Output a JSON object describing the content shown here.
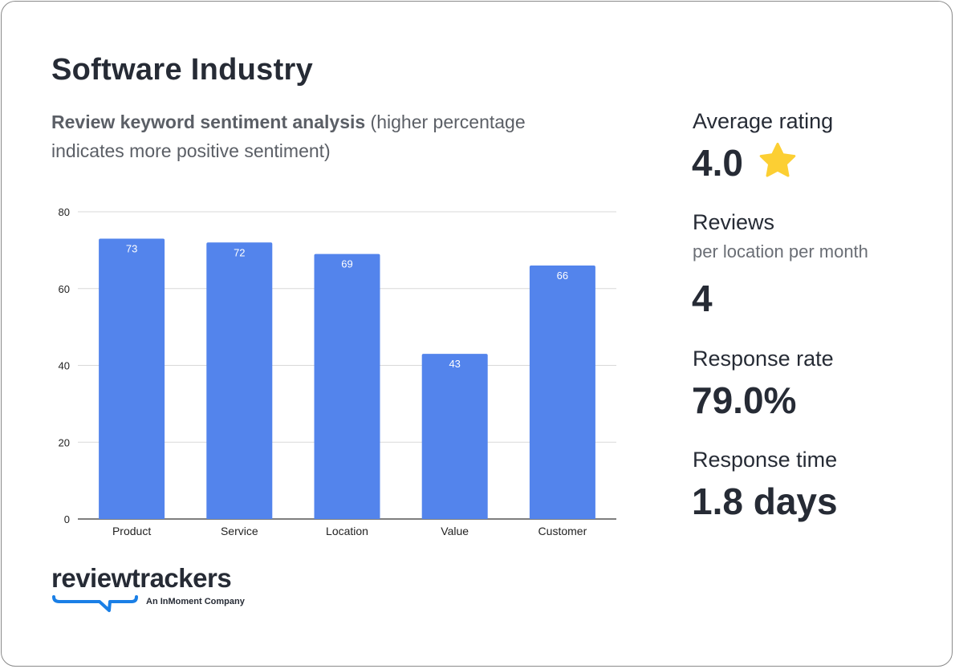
{
  "title": "Software Industry",
  "subtitle": {
    "bold": "Review keyword sentiment analysis",
    "rest": " (higher percentage indicates more positive sentiment)"
  },
  "stats": {
    "avg_rating_label": "Average rating",
    "avg_rating_value": "4.0",
    "star_icon": "star-icon",
    "star_color": "#fccf33",
    "reviews_label": "Reviews",
    "reviews_sub": "per location per month",
    "reviews_value": "4",
    "response_rate_label": "Response rate",
    "response_rate_value": "79.0%",
    "response_time_label": "Response time",
    "response_time_value": "1.8 days"
  },
  "logo": {
    "word": "reviewtrackers",
    "tagline": "An InMoment Company",
    "accent": "#1a7fe6"
  },
  "chart_data": {
    "type": "bar",
    "categories": [
      "Product",
      "Service",
      "Location",
      "Value",
      "Customer"
    ],
    "values": [
      73,
      72,
      69,
      43,
      66
    ],
    "ylim": [
      0,
      80
    ],
    "yticks": [
      0,
      20,
      40,
      60,
      80
    ],
    "grid": true,
    "data_labels": true,
    "bar_color": "#5384ec"
  }
}
